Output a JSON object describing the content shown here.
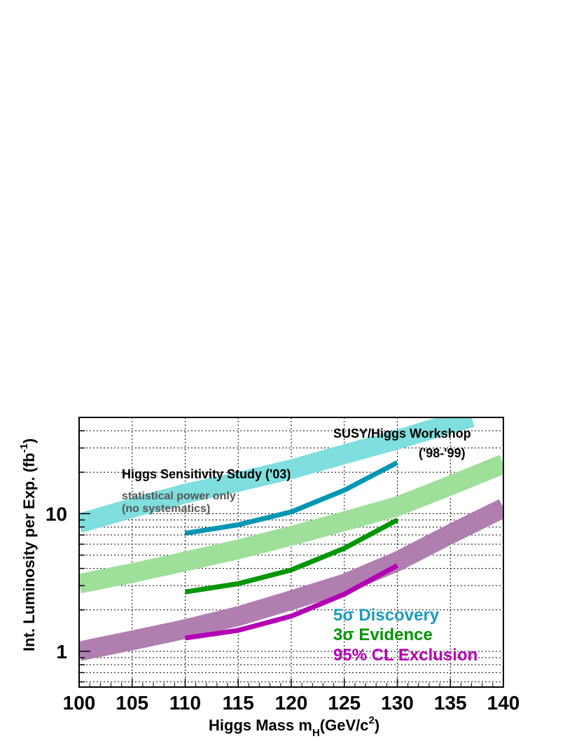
{
  "chart_data": {
    "type": "line",
    "xlabel": "Higgs Mass m",
    "xlabel_sub": "H",
    "xlabel_unit": "(GeV/c",
    "xlabel_unit_sup": "2",
    "xlabel_close": ")",
    "ylabel": "Int. Luminosity per Exp. (fb",
    "ylabel_sup": "-1",
    "ylabel_close": ")",
    "xlim": [
      100,
      140
    ],
    "ylim": [
      0.55,
      50
    ],
    "yscale": "log",
    "grid": true,
    "x_ticks": [
      100,
      105,
      110,
      115,
      120,
      125,
      130,
      135,
      140
    ],
    "x_tick_labels": [
      "100",
      "105",
      "110",
      "115",
      "120",
      "125",
      "130",
      "135",
      "140"
    ],
    "y_tick_labels": [
      {
        "value": 1,
        "label": "1"
      },
      {
        "value": 10,
        "label": "10"
      }
    ],
    "bands": [
      {
        "name": "SUSY/Higgs Workshop discovery",
        "color": "#7fdede",
        "x": [
          100,
          105,
          110,
          115,
          120,
          125,
          130,
          135,
          137
        ],
        "y": [
          8.5,
          11.0,
          14.0,
          17.0,
          21.0,
          27.0,
          34.5,
          45.0,
          50.0
        ]
      },
      {
        "name": "SUSY/Higgs Workshop evidence",
        "color": "#9ee09a",
        "x": [
          100,
          105,
          110,
          115,
          120,
          125,
          130,
          135,
          140
        ],
        "y": [
          3.1,
          3.7,
          4.5,
          5.5,
          6.9,
          8.8,
          11.3,
          16.0,
          23.0
        ]
      },
      {
        "name": "SUSY/Higgs Workshop exclusion",
        "color": "#b07fb0",
        "x": [
          100,
          105,
          110,
          115,
          120,
          125,
          130,
          135,
          140
        ],
        "y": [
          1.0,
          1.2,
          1.45,
          1.8,
          2.35,
          3.1,
          4.5,
          7.1,
          11.0
        ]
      }
    ],
    "series": [
      {
        "name": "5σ Discovery",
        "color": "#0096b4",
        "x": [
          110,
          115,
          120,
          125,
          130
        ],
        "y": [
          7.2,
          8.3,
          10.3,
          14.8,
          23.5
        ]
      },
      {
        "name": "3σ Evidence",
        "color": "#009600",
        "x": [
          110,
          115,
          120,
          125,
          130
        ],
        "y": [
          2.7,
          3.1,
          3.9,
          5.6,
          9.0
        ]
      },
      {
        "name": "95% CL Exclusion",
        "color": "#b400b4",
        "x": [
          110,
          115,
          120,
          125,
          130
        ],
        "y": [
          1.25,
          1.42,
          1.8,
          2.6,
          4.2
        ]
      }
    ],
    "annotations": {
      "workshop_line1": "SUSY/Higgs Workshop",
      "workshop_line2": "('98-'99)",
      "study": "Higgs Sensitivity Study ('03)",
      "note_line1": "statistical power only",
      "note_line2": "(no systematics)"
    },
    "legend": [
      {
        "label": "5σ Discovery",
        "color": "#1a9bbf"
      },
      {
        "label": "3σ Evidence",
        "color": "#009600"
      },
      {
        "label": "95% CL Exclusion",
        "color": "#b400b4"
      }
    ]
  }
}
